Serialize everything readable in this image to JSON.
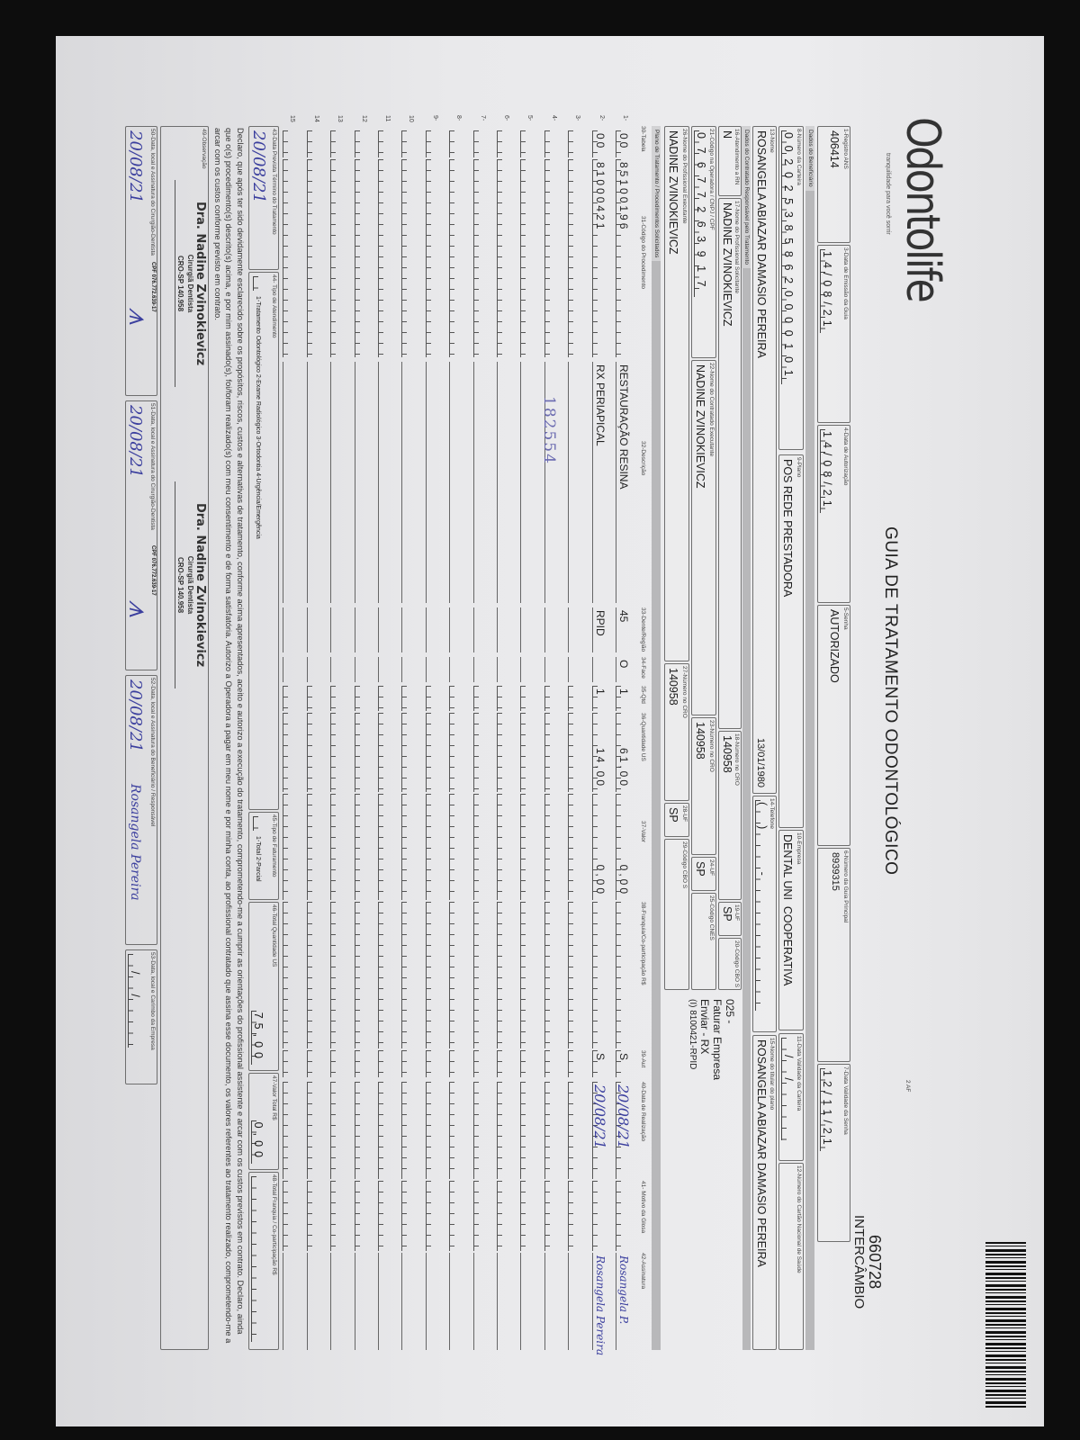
{
  "header": {
    "logo": "Odontolife",
    "logo_tagline": "tranquilidade para você sorrir",
    "title": "GUIA DE TRATAMENTO ODONTOLÓGICO",
    "page_code": "2 AF",
    "guide_number": "660728",
    "guide_type": "INTERCÂMBIO",
    "registro_ans": {
      "label": "1-Registro ANS",
      "value": "406414"
    },
    "data_emissao": {
      "label": "3-Data de Emissão da Guia",
      "value": "14/08/21"
    },
    "data_autorizacao": {
      "label": "4-Data de Autorização",
      "value": "14/08/21"
    },
    "senha": {
      "label": "5-Senha",
      "value": "AUTORIZADO"
    },
    "guia_principal": {
      "label": "6-Número da Guia Principal",
      "value": "8939315"
    },
    "validade_senha": {
      "label": "7-Data Validade da Senha",
      "value": "12/11/21"
    }
  },
  "beneficiario": {
    "section": "Dados do Beneficiário",
    "carteira": {
      "label": "8-Número da Carteira",
      "value": "0020253858620000101"
    },
    "plano": {
      "label": "9-Plano",
      "value": "POS REDE PRESTADORA"
    },
    "empresa": {
      "label": "10-Empresa",
      "value": "DENTAL UNI  COOPERATIVA"
    },
    "validade_carteira": {
      "label": "11-Data Validade da Carteira",
      "value": "  /  /  "
    },
    "cartao_nacional": {
      "label": "12-Número do Cartão Nacional de Saúde",
      "value": ""
    },
    "nome": {
      "label": "13-Nome",
      "value": "ROSANGELA ABIAZAR DAMASIO PEREIRA",
      "birth": "13/01/1980"
    },
    "telefone": {
      "label": "14-Telefone",
      "value": "(  )     -    "
    },
    "titular": {
      "label": "15-Nome do titular do plano",
      "value": "ROSANGELA ABIAZAR DAMASIO PEREIRA"
    }
  },
  "contratado": {
    "section": "Dados do Contratado Responsável pelo Tratamento",
    "atendimento_rn": {
      "label": "16-Atendimento a RN",
      "value": "N"
    },
    "prof_solicitante": {
      "label": "17-Nome do Profissional Solicitante",
      "value": "NADINE ZVINOKIEVICZ"
    },
    "cro_solicitante": {
      "label": "18-Número no CRO",
      "value": "140958"
    },
    "uf_solicitante": {
      "label": "19-UF",
      "value": "SP"
    },
    "cbo_solicitante": {
      "label": "20-Código CBO S",
      "value": ""
    },
    "codigo_operadora": {
      "label": "21-Código na Operadora / CNPJ / CPF",
      "value": "07677263917"
    },
    "contratado_executante": {
      "label": "22-Nome do Contratado Executante",
      "value": "NADINE ZVINOKIEVICZ"
    },
    "cro_contratado": {
      "label": "23-Número no CRO",
      "value": "140958"
    },
    "uf_contratado": {
      "label": "24-UF",
      "value": "SP"
    },
    "cnes": {
      "label": "25-Código CNES",
      "value": ""
    },
    "prof_executante": {
      "label": "26-Nome do Profissional Executante",
      "value": "NADINE ZVINOKIEVICZ"
    },
    "cro_executante": {
      "label": "27-Número no CRO",
      "value": "140958"
    },
    "uf_executante": {
      "label": "28-UF",
      "value": "SP"
    },
    "cbo_executante": {
      "label": "29-Código CBO S",
      "value": ""
    },
    "notes": [
      "025 -",
      "Faturar Empresa",
      "Enviar - RX",
      "(I) 8100421-RPID"
    ]
  },
  "procedimentos": {
    "section": "Plano de Tratamento / Procedimentos Solicitados",
    "columns": [
      "30-Tabela",
      "31-Código do Procedimento",
      "32-Descrição",
      "33-Dente/Região",
      "34-Face",
      "35-Qtd",
      "36-Quantidade US",
      "37-Valor",
      "38-Franquia/Co-participação R$",
      "39-Aut",
      "40-Data de Realização",
      "41- Motivo da Glosa",
      "42-Assinatura"
    ],
    "handwritten_note": "182554",
    "rows": [
      {
        "num": "1-",
        "tabela": "00",
        "codigo": "85100196",
        "descricao": "RESTAURAÇÃO RESINA",
        "dente": "45",
        "face": "O",
        "qtd": "1",
        "qtd_us": "61,00",
        "valor": "0,00",
        "franquia": "",
        "aut": "S",
        "data": "20/08/21",
        "glosa": "",
        "assinatura": "Rosangela P."
      },
      {
        "num": "2-",
        "tabela": "00",
        "codigo": "81000421",
        "descricao": "RX PERIAPICAL",
        "dente": "RPID",
        "face": "",
        "qtd": "1",
        "qtd_us": "14,00",
        "valor": "0,00",
        "franquia": "",
        "aut": "S",
        "data": "20/08/21",
        "glosa": "",
        "assinatura": "Rosangela Pereira"
      },
      {
        "num": "3-"
      },
      {
        "num": "4-"
      },
      {
        "num": "5-"
      },
      {
        "num": "6-"
      },
      {
        "num": "7-"
      },
      {
        "num": "8-"
      },
      {
        "num": "9-"
      },
      {
        "num": "10"
      },
      {
        "num": "11"
      },
      {
        "num": "12"
      },
      {
        "num": "13"
      },
      {
        "num": "14"
      },
      {
        "num": "15"
      }
    ]
  },
  "totais": {
    "data_prevista": {
      "label": "43-Data Prevista Término do Tratamento",
      "value": "20/08/21"
    },
    "tipo_atendimento": {
      "label": "44- Tipo de Atendimento",
      "options": "1-Tratamento Odontológico  2-Exame Radiológico  3-Ortodontia  4-Urgência/Emergência",
      "value": ""
    },
    "tipo_faturamento": {
      "label": "45-Tipo de Faturamento",
      "options": "1-Total 2-Parcial",
      "value": ""
    },
    "total_us": {
      "label": "46-Total Quantidade US",
      "value": "75,00"
    },
    "valor_total": {
      "label": "47-Valor Total R$",
      "value": "0,00"
    },
    "total_franquia": {
      "label": "48-Total Franquia / Co-participação R$",
      "value": ""
    }
  },
  "declaracao": "Declaro, que após ter sido devidamente esclarecido sobre os propósitos, riscos, custos e alternativas de tratamento, conforme acima apresentados, aceito e autorizo a execução do tratamento, comprometendo-me a cumprir as orientações do profissional assistente e arcar com os custos previstos em contrato. Declaro, ainda que o(s) procedimento(s) descrito(s) acima, e por mim assinado(s), foi/foram realizado(s) com meu consentimento e de forma satisfatória. Autorizo a Operadora a pagar em meu nome e por minha conta, ao profissional contratado que assina esse documento, os valores referentes ao tratamento realizado, comprometendo-me a arcar com os custos conforme previsto em contrato.",
  "observacao": {
    "label": "49-Observação",
    "stamp_name": "Dra. Nadine Zvinokievicz",
    "stamp_title": "Cirurgiã Dentista",
    "stamp_cro": "CRO-SP 140.958",
    "stamp_cpf": "CPF 076.772.639-17"
  },
  "assinaturas": {
    "cirurgiao_inicio": {
      "label": "50-Data, local e Assinatura do Cirurgião-Dentista",
      "date": "20/08/21"
    },
    "cirurgiao_fim": {
      "label": "51-Data, local e Assinatura do Cirurgião-Dentista",
      "date": "20/08/21"
    },
    "beneficiario": {
      "label": "52-Data, local e Assinatura do Beneficiário / Responsável",
      "date": "20/08/21",
      "signature": "Rosangela Pereira"
    },
    "empresa": {
      "label": "53-Data, local e Carimbo da Empresa",
      "value": "  /  /  "
    }
  },
  "colors": {
    "ink_blue": "#3b3f9e",
    "band_gray": "#b8b8ba",
    "paper": "#e9e9eb"
  }
}
